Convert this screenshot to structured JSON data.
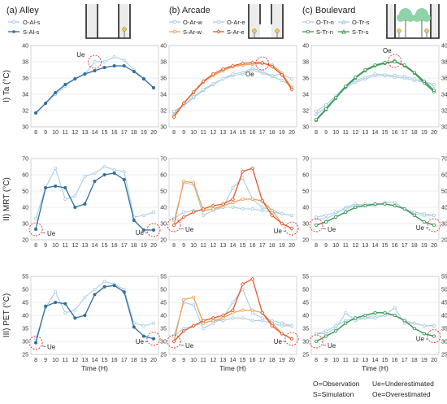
{
  "figure": {
    "x_axis_label": "Time (H)",
    "footnote": [
      "O=Observation",
      "S=Simulation",
      "Ue=Underestimated",
      "Oe=Overestimated"
    ]
  },
  "colors": {
    "observation": "#a9cce5",
    "alley_sim": "#2e6e9e",
    "arcade_sim_w": "#f0a050",
    "arcade_sim_e": "#e05a2b",
    "boulevard_sim": "#3f9a55",
    "highlight": "#e03030",
    "grid": "#dddddd"
  },
  "columns": [
    {
      "id": "a",
      "title": "(a) Alley",
      "legend": [
        {
          "label": "O-Al-s",
          "kind": "obs"
        },
        {
          "label": "S-Al-s",
          "kind": "sim"
        }
      ],
      "icon": "alley-section-icon"
    },
    {
      "id": "b",
      "title": "(b) Arcade",
      "legend": [
        {
          "label": "O-Ar-w",
          "kind": "obs"
        },
        {
          "label": "O-Ar-e",
          "kind": "obs"
        },
        {
          "label": "S-Ar-w",
          "kind": "sim-w"
        },
        {
          "label": "S-Ar-e",
          "kind": "sim-e"
        }
      ],
      "icon": "arcade-section-icon"
    },
    {
      "id": "c",
      "title": "(c) Boulevard",
      "legend": [
        {
          "label": "O-Tr-n",
          "kind": "obs"
        },
        {
          "label": "O-Tr-s",
          "kind": "obs"
        },
        {
          "label": "S-Tr-n",
          "kind": "sim"
        },
        {
          "label": "S-Tr-s",
          "kind": "sim"
        }
      ],
      "icon": "boulevard-section-icon"
    }
  ],
  "rows": [
    {
      "id": "ta",
      "label": "I) Ta (°C)"
    },
    {
      "id": "mrt",
      "label": "II) MRT (°C)"
    },
    {
      "id": "pet",
      "label": "III) PET (°C)"
    }
  ],
  "chart_data": [
    {
      "type": "line",
      "panel": "I-a",
      "x": [
        8,
        9,
        10,
        11,
        12,
        13,
        14,
        15,
        16,
        17,
        18,
        19,
        20
      ],
      "ylim": [
        30,
        40
      ],
      "yticks": [
        30,
        32,
        34,
        36,
        38,
        40
      ],
      "ylabel": "I) Ta (°C)",
      "xlabel": "",
      "series": [
        {
          "name": "O-Al-s",
          "role": "obs",
          "values": [
            31.7,
            32.9,
            34.0,
            35.0,
            35.9,
            36.5,
            38.0,
            38.0,
            38.6,
            38.2,
            37.0,
            35.9,
            34.8
          ]
        },
        {
          "name": "S-Al-s",
          "role": "sim",
          "values": [
            31.7,
            32.9,
            34.2,
            35.2,
            35.9,
            36.5,
            36.9,
            37.3,
            37.5,
            37.5,
            36.8,
            35.9,
            34.8
          ]
        }
      ],
      "annotations": [
        {
          "text": "Ue",
          "x": 14,
          "y": 38.0
        }
      ]
    },
    {
      "type": "line",
      "panel": "I-b",
      "x": [
        8,
        9,
        10,
        11,
        12,
        13,
        14,
        15,
        16,
        17,
        18,
        19,
        20
      ],
      "ylim": [
        30,
        40
      ],
      "yticks": [
        30,
        32,
        34,
        36,
        38,
        40
      ],
      "ylabel": "",
      "xlabel": "",
      "series": [
        {
          "name": "O-Ar-w",
          "role": "obs",
          "values": [
            31.8,
            32.6,
            33.6,
            34.5,
            35.2,
            35.9,
            36.3,
            36.5,
            37.0,
            36.6,
            36.2,
            35.7,
            35.0
          ]
        },
        {
          "name": "O-Ar-e",
          "role": "obs",
          "values": [
            31.9,
            32.7,
            33.7,
            34.6,
            35.3,
            35.9,
            36.5,
            36.7,
            37.2,
            36.8,
            36.3,
            36.5,
            35.9
          ]
        },
        {
          "name": "S-Ar-w",
          "role": "sim-w",
          "values": [
            31.4,
            32.9,
            34.2,
            35.5,
            36.3,
            36.9,
            37.4,
            37.6,
            37.7,
            37.8,
            37.6,
            36.6,
            34.8
          ]
        },
        {
          "name": "S-Ar-e",
          "role": "sim-e",
          "values": [
            31.2,
            32.9,
            34.3,
            35.6,
            36.5,
            37.1,
            37.5,
            37.8,
            37.9,
            37.9,
            37.4,
            36.4,
            34.6
          ]
        }
      ],
      "annotations": [
        {
          "text": "Oe",
          "x": 17,
          "y": 37.8
        }
      ]
    },
    {
      "type": "line",
      "panel": "I-c",
      "x": [
        8,
        9,
        10,
        11,
        12,
        13,
        14,
        15,
        16,
        17,
        18,
        19,
        20
      ],
      "ylim": [
        30,
        40
      ],
      "yticks": [
        30,
        32,
        34,
        36,
        38,
        40
      ],
      "ylabel": "",
      "xlabel": "",
      "series": [
        {
          "name": "O-Tr-n",
          "role": "obs",
          "values": [
            31.5,
            32.4,
            33.6,
            34.8,
            35.5,
            35.9,
            36.3,
            36.3,
            36.1,
            36.0,
            35.7,
            35.5,
            35.0
          ]
        },
        {
          "name": "O-Tr-s",
          "role": "obs",
          "values": [
            31.9,
            32.7,
            33.8,
            35.0,
            35.7,
            36.1,
            36.5,
            36.4,
            36.3,
            36.2,
            35.9,
            35.6,
            35.2
          ]
        },
        {
          "name": "S-Tr-n",
          "role": "sim",
          "values": [
            30.8,
            32.1,
            33.5,
            34.9,
            36.0,
            36.9,
            37.5,
            37.8,
            38.1,
            37.5,
            36.6,
            35.4,
            34.3
          ]
        },
        {
          "name": "S-Tr-s",
          "role": "sim",
          "values": [
            30.9,
            32.2,
            33.6,
            35.0,
            36.1,
            37.0,
            37.6,
            37.9,
            38.0,
            37.6,
            36.7,
            35.6,
            34.5
          ]
        }
      ],
      "annotations": [
        {
          "text": "Oe",
          "x": 16,
          "y": 38.1
        }
      ]
    },
    {
      "type": "line",
      "panel": "II-a",
      "x": [
        8,
        9,
        10,
        11,
        12,
        13,
        14,
        15,
        16,
        17,
        18,
        19,
        20
      ],
      "ylim": [
        20,
        70
      ],
      "yticks": [
        20,
        30,
        40,
        50,
        60,
        70
      ],
      "ylabel": "II) MRT (°C)",
      "xlabel": "",
      "series": [
        {
          "name": "O-Al-s",
          "role": "obs",
          "values": [
            33,
            52,
            64,
            45,
            47,
            59,
            61,
            65,
            63,
            62,
            34,
            35,
            37
          ]
        },
        {
          "name": "S-Al-s",
          "role": "sim",
          "values": [
            26.5,
            52,
            53,
            52,
            40,
            42,
            56,
            60,
            61,
            57,
            32,
            26,
            26
          ]
        }
      ],
      "annotations": [
        {
          "text": "Ue",
          "x": 8,
          "y": 26.5
        },
        {
          "text": "Ue",
          "x": 20,
          "y": 26
        }
      ]
    },
    {
      "type": "line",
      "panel": "II-b",
      "x": [
        8,
        9,
        10,
        11,
        12,
        13,
        14,
        15,
        16,
        17,
        18,
        19,
        20
      ],
      "ylim": [
        20,
        70
      ],
      "yticks": [
        20,
        30,
        40,
        50,
        60,
        70
      ],
      "ylabel": "",
      "xlabel": "",
      "series": [
        {
          "name": "O-Ar-w",
          "role": "obs",
          "values": [
            32,
            55,
            54,
            35,
            38,
            40,
            52,
            58,
            45,
            40,
            38,
            36,
            35
          ]
        },
        {
          "name": "O-Ar-e",
          "role": "obs",
          "values": [
            33,
            37,
            38,
            38,
            39,
            40,
            40,
            39,
            39,
            38,
            37,
            36,
            35
          ]
        },
        {
          "name": "S-Ar-w",
          "role": "sim-w",
          "values": [
            29,
            56,
            55,
            38,
            39,
            41,
            43,
            45,
            45,
            44,
            38,
            30,
            27
          ]
        },
        {
          "name": "S-Ar-e",
          "role": "sim-e",
          "values": [
            29,
            34,
            37,
            39,
            41,
            42,
            45,
            62,
            64,
            44,
            35,
            30,
            27
          ]
        }
      ],
      "annotations": [
        {
          "text": "Ue",
          "x": 8,
          "y": 29
        },
        {
          "text": "Ue",
          "x": 20,
          "y": 27
        }
      ]
    },
    {
      "type": "line",
      "panel": "II-c",
      "x": [
        8,
        9,
        10,
        11,
        12,
        13,
        14,
        15,
        16,
        17,
        18,
        19,
        20
      ],
      "ylim": [
        20,
        70
      ],
      "yticks": [
        20,
        30,
        40,
        50,
        60,
        70
      ],
      "ylabel": "",
      "xlabel": "",
      "series": [
        {
          "name": "O-Tr-n",
          "role": "obs",
          "values": [
            33,
            33,
            36,
            40,
            42,
            41,
            41,
            43,
            43,
            39,
            36,
            35,
            35
          ]
        },
        {
          "name": "O-Tr-s",
          "role": "obs",
          "values": [
            34,
            35,
            37,
            39,
            41,
            42,
            42,
            42,
            41,
            39,
            37,
            36,
            35
          ]
        },
        {
          "name": "S-Tr-n",
          "role": "sim",
          "values": [
            29,
            31,
            34,
            37,
            40,
            41,
            42,
            42,
            41,
            39,
            35,
            31,
            29
          ]
        },
        {
          "name": "S-Tr-s",
          "role": "sim",
          "values": [
            29,
            31,
            34,
            37,
            40,
            41,
            42,
            42,
            41,
            39,
            35,
            31,
            29
          ]
        }
      ],
      "annotations": [
        {
          "text": "Ue",
          "x": 8,
          "y": 29
        },
        {
          "text": "Ue",
          "x": 20,
          "y": 29
        }
      ]
    },
    {
      "type": "line",
      "panel": "III-a",
      "x": [
        8,
        9,
        10,
        11,
        12,
        13,
        14,
        15,
        16,
        17,
        18,
        19,
        20
      ],
      "ylim": [
        25,
        55
      ],
      "yticks": [
        25,
        30,
        35,
        40,
        45,
        50,
        55
      ],
      "ylabel": "III) PET (°C)",
      "xlabel": "Time (H)",
      "series": [
        {
          "name": "O-Al-s",
          "role": "obs",
          "values": [
            31,
            43,
            49,
            41,
            42,
            47,
            50,
            53,
            52,
            50,
            37,
            36,
            37
          ]
        },
        {
          "name": "S-Al-s",
          "role": "sim",
          "values": [
            29.5,
            43.5,
            45,
            44.5,
            39,
            40,
            48,
            51,
            51.5,
            49,
            35.5,
            32,
            31
          ]
        }
      ],
      "annotations": [
        {
          "text": "Ue",
          "x": 8,
          "y": 29.5
        },
        {
          "text": "Ue",
          "x": 20,
          "y": 31
        }
      ]
    },
    {
      "type": "line",
      "panel": "III-b",
      "x": [
        8,
        9,
        10,
        11,
        12,
        13,
        14,
        15,
        16,
        17,
        18,
        19,
        20
      ],
      "ylim": [
        25,
        55
      ],
      "yticks": [
        25,
        30,
        35,
        40,
        45,
        50,
        55
      ],
      "ylabel": "",
      "xlabel": "Time (H)",
      "series": [
        {
          "name": "O-Ar-w",
          "role": "obs",
          "values": [
            32,
            45,
            44,
            35,
            37,
            39,
            45,
            50,
            41,
            39,
            38,
            37,
            36
          ]
        },
        {
          "name": "O-Ar-e",
          "role": "obs",
          "values": [
            32,
            35,
            36,
            37,
            38,
            38,
            39,
            39,
            38,
            38,
            37,
            36,
            36
          ]
        },
        {
          "name": "S-Ar-w",
          "role": "sim-w",
          "values": [
            30,
            46,
            47,
            37,
            38,
            39,
            41,
            42,
            42,
            41,
            37,
            33,
            31
          ]
        },
        {
          "name": "S-Ar-e",
          "role": "sim-e",
          "values": [
            30,
            34,
            36,
            38,
            39,
            40,
            42,
            52,
            54,
            41,
            36,
            33,
            31
          ]
        }
      ],
      "annotations": [
        {
          "text": "Ue",
          "x": 8,
          "y": 30
        },
        {
          "text": "Ue",
          "x": 20,
          "y": 31
        }
      ]
    },
    {
      "type": "line",
      "panel": "III-c",
      "x": [
        8,
        9,
        10,
        11,
        12,
        13,
        14,
        15,
        16,
        17,
        18,
        19,
        20
      ],
      "ylim": [
        25,
        55
      ],
      "yticks": [
        25,
        30,
        35,
        40,
        45,
        50,
        55
      ],
      "ylabel": "",
      "xlabel": "Time (H)",
      "series": [
        {
          "name": "O-Tr-n",
          "role": "obs",
          "values": [
            33,
            33,
            35,
            41,
            38,
            39,
            39,
            40,
            43,
            37,
            37,
            36,
            36
          ]
        },
        {
          "name": "O-Tr-s",
          "role": "obs",
          "values": [
            33,
            34,
            36,
            38,
            39,
            39,
            40,
            40,
            40,
            38,
            37,
            36,
            36
          ]
        },
        {
          "name": "S-Tr-n",
          "role": "sim",
          "values": [
            30,
            32,
            34,
            37,
            39,
            40,
            41,
            41,
            40,
            38,
            35,
            33,
            32
          ]
        },
        {
          "name": "S-Tr-s",
          "role": "sim",
          "values": [
            30,
            32,
            34,
            37,
            39,
            40,
            41,
            41,
            40,
            38,
            35,
            33,
            32
          ]
        }
      ],
      "annotations": [
        {
          "text": "Ue",
          "x": 8,
          "y": 30
        },
        {
          "text": "Ue",
          "x": 20,
          "y": 32
        }
      ]
    }
  ]
}
